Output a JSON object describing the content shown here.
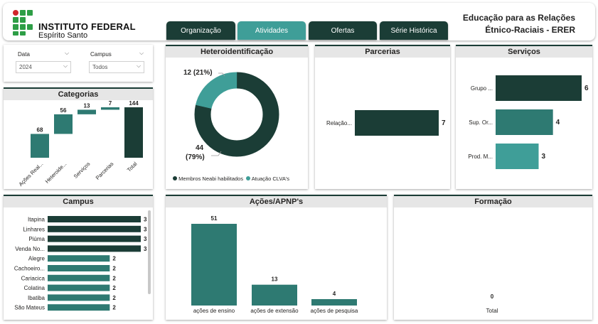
{
  "header": {
    "org_name": "INSTITUTO FEDERAL",
    "org_sub": "Espírito Santo",
    "title_line1": "Educação para as Relações",
    "title_line2": "Étnico-Raciais - ERER"
  },
  "tabs": [
    {
      "label": "Organização"
    },
    {
      "label": "Atividades"
    },
    {
      "label": "Ofertas"
    },
    {
      "label": "Série Histórica"
    }
  ],
  "filters": {
    "date_label": "Data",
    "date_value": "2024",
    "campus_label": "Campus",
    "campus_value": "Todos"
  },
  "colors": {
    "dark": "#1b3d36",
    "mid": "#2e7a72",
    "light": "#3f9e98",
    "logo_green": "#2e9e46",
    "logo_red": "#d0262b"
  },
  "categorias": {
    "title": "Categorias",
    "chart_data": {
      "type": "waterfall",
      "categories": [
        "Ações Real...",
        "Heteroide...",
        "Serviços",
        "Parcerias",
        "Total"
      ],
      "values": [
        68,
        56,
        13,
        7,
        144
      ],
      "labels": [
        "68",
        "56",
        "13",
        "7",
        "144"
      ]
    }
  },
  "hetero": {
    "title": "Heteroidentificação",
    "chart_data": {
      "type": "donut",
      "slices": [
        {
          "name": "Membros Neabi habilitados",
          "value": 44,
          "pct": "(79%)"
        },
        {
          "name": "Atuação CLVA's",
          "value": 12,
          "pct": "(21%)"
        }
      ]
    },
    "label_small": "12 (21%)",
    "label_big_v": "44",
    "label_big_p": "(79%)"
  },
  "parcerias": {
    "title": "Parcerias",
    "chart_data": {
      "type": "bar",
      "categories": [
        "Relação..."
      ],
      "values": [
        7
      ]
    }
  },
  "servicos": {
    "title": "Serviços",
    "chart_data": {
      "type": "bar",
      "categories": [
        "Grupo ...",
        "Sup. Or...",
        "Prod. M..."
      ],
      "values": [
        6,
        4,
        3
      ]
    }
  },
  "campus": {
    "title": "Campus",
    "chart_data": {
      "type": "bar",
      "categories": [
        "Itapina",
        "Linhares",
        "Piúma",
        "Venda No...",
        "Alegre",
        "Cachoeiro...",
        "Cariacica",
        "Colatina",
        "Ibatiba",
        "São Mateus"
      ],
      "values": [
        3,
        3,
        3,
        3,
        2,
        2,
        2,
        2,
        2,
        2
      ]
    }
  },
  "acoes": {
    "title": "Ações/APNP's",
    "chart_data": {
      "type": "bar",
      "categories": [
        "ações de ensino",
        "ações de extensão",
        "ações de pesquisa"
      ],
      "values": [
        51,
        13,
        4
      ]
    }
  },
  "formacao": {
    "title": "Formação",
    "chart_data": {
      "type": "bar",
      "categories": [
        "Total"
      ],
      "values": [
        0
      ]
    }
  }
}
